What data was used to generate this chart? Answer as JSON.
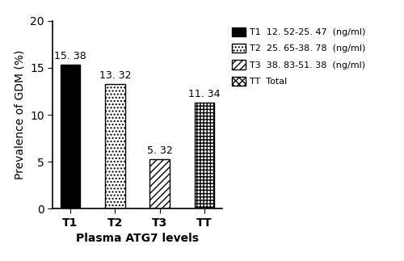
{
  "categories": [
    "T1",
    "T2",
    "T3",
    "TT"
  ],
  "values": [
    15.38,
    13.32,
    5.32,
    11.34
  ],
  "bar_labels": [
    "15. 38",
    "13. 32",
    "5. 32",
    "11. 34"
  ],
  "xlabel": "Plasma ATG7 levels",
  "ylabel": "Prevalence of GDM (%)",
  "ylim": [
    0,
    20
  ],
  "yticks": [
    0,
    5,
    10,
    15,
    20
  ],
  "legend_entries": [
    {
      "label": "T1  12. 52-25. 47  (ng/ml)",
      "hatch": "",
      "facecolor": "black"
    },
    {
      "label": "T2  25. 65-38. 78  (ng/ml)",
      "hatch": "....",
      "facecolor": "white"
    },
    {
      "label": "T3  38. 83-51. 38  (ng/ml)",
      "hatch": "////",
      "facecolor": "white"
    },
    {
      "label": "TT  Total",
      "hatch": "||||----",
      "facecolor": "white"
    }
  ],
  "hatches": [
    "",
    "....",
    "////",
    "||||----"
  ],
  "bar_facecolors": [
    "black",
    "white",
    "white",
    "white"
  ],
  "bar_edgecolors": [
    "black",
    "black",
    "black",
    "black"
  ],
  "background_color": "#ffffff",
  "label_fontsize": 10,
  "tick_fontsize": 10,
  "value_label_fontsize": 9,
  "bar_width": 0.45
}
